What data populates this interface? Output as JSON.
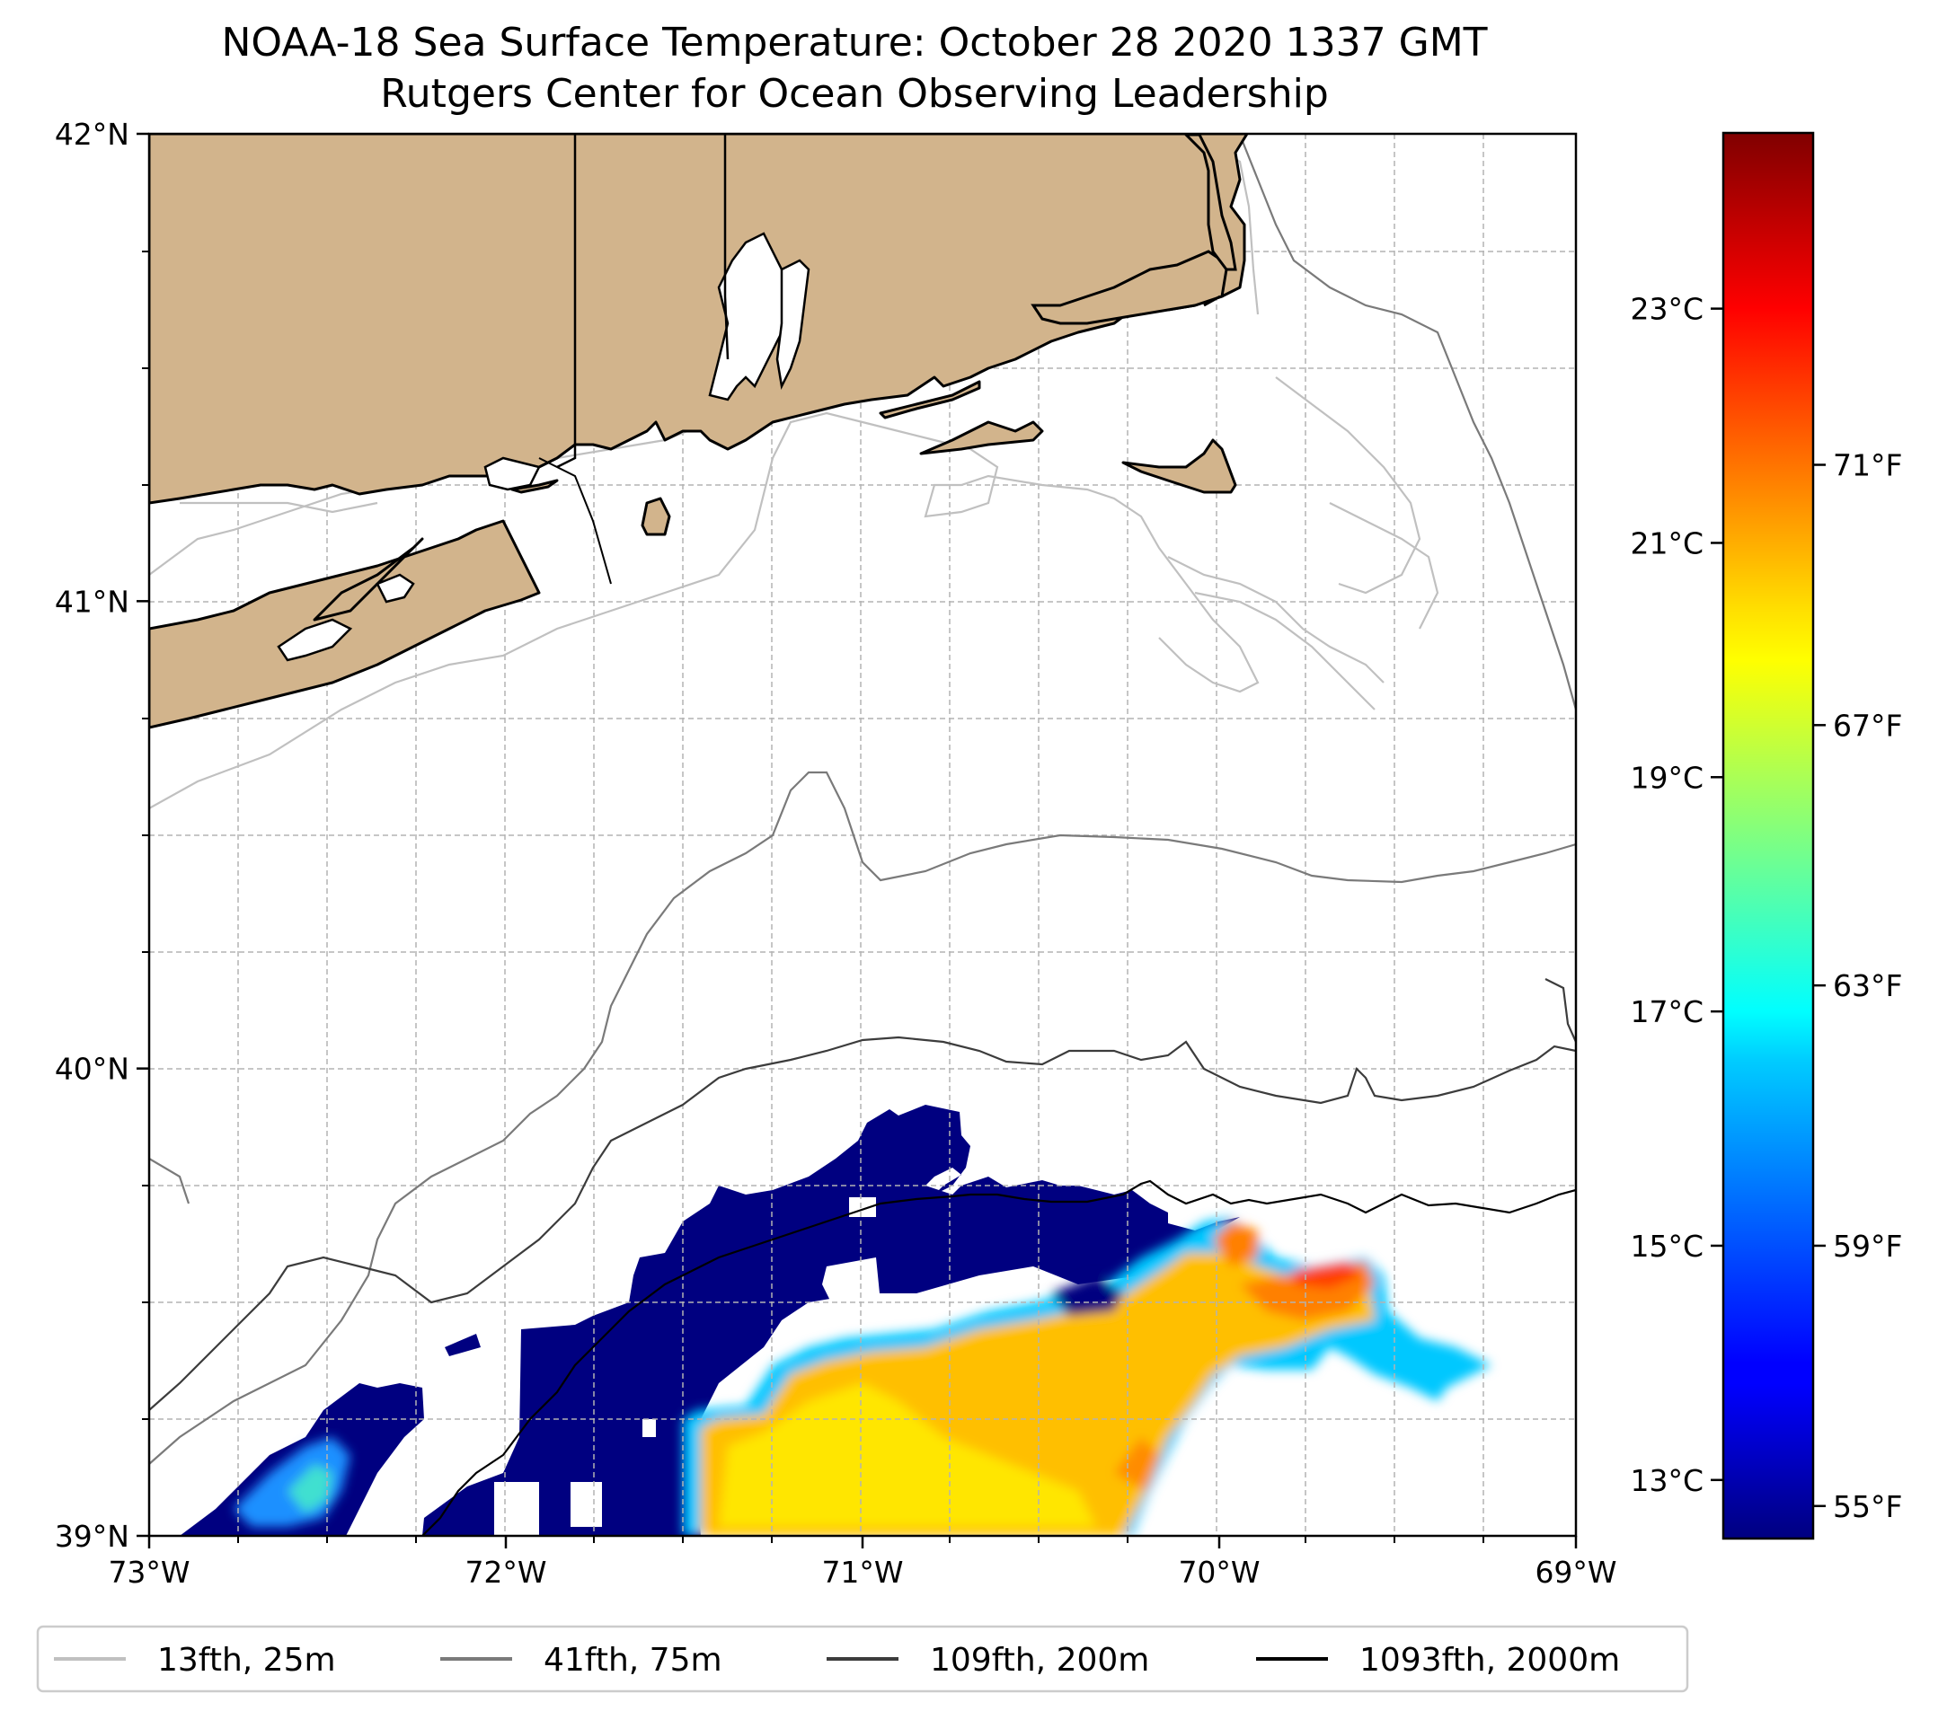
{
  "title_line1": "NOAA-18 Sea Surface Temperature: October 28 2020 1337 GMT",
  "title_line2": "Rutgers Center for Ocean Observing Leadership",
  "colors": {
    "land": "#d2b48c",
    "coast": "#000000",
    "grid": "#b3b3b3",
    "contour_25m": "#c0c0c0",
    "contour_75m": "#7a7a7a",
    "contour_200m": "#3c3c3c",
    "contour_2000m": "#000000"
  },
  "chart_data": {
    "type": "heatmap",
    "colormap": "jet",
    "colorbar_range_c": [
      12.5,
      24.5
    ],
    "xlim": [
      -73,
      -69
    ],
    "ylim": [
      39,
      42
    ],
    "x_ticks": [
      {
        "value": -73,
        "label": "73°W"
      },
      {
        "value": -72,
        "label": "72°W"
      },
      {
        "value": -71,
        "label": "71°W"
      },
      {
        "value": -70,
        "label": "70°W"
      },
      {
        "value": -69,
        "label": "69°W"
      }
    ],
    "y_ticks": [
      {
        "value": 42,
        "label": "42°N"
      },
      {
        "value": 41,
        "label": "41°N"
      },
      {
        "value": 40,
        "label": "40°N"
      },
      {
        "value": 39,
        "label": "39°N"
      }
    ],
    "colorbar_left_ticks": [
      {
        "value": 23,
        "label": "23°C"
      },
      {
        "value": 21,
        "label": "21°C"
      },
      {
        "value": 19,
        "label": "19°C"
      },
      {
        "value": 17,
        "label": "17°C"
      },
      {
        "value": 15,
        "label": "15°C"
      },
      {
        "value": 13,
        "label": "13°C"
      }
    ],
    "colorbar_right_ticks": [
      {
        "value": 71,
        "label": "71°F"
      },
      {
        "value": 67,
        "label": "67°F"
      },
      {
        "value": 63,
        "label": "63°F"
      },
      {
        "value": 59,
        "label": "59°F"
      },
      {
        "value": 55,
        "label": "55°F"
      }
    ],
    "grid": true,
    "legend": {
      "placement": "bottom",
      "entries": [
        {
          "label": "13fth, 25m",
          "color": "#c0c0c0"
        },
        {
          "label": "41fth, 75m",
          "color": "#7a7a7a"
        },
        {
          "label": "109fth, 200m",
          "color": "#3c3c3c"
        },
        {
          "label": "1093fth, 2000m",
          "color": "#000000"
        }
      ]
    }
  }
}
